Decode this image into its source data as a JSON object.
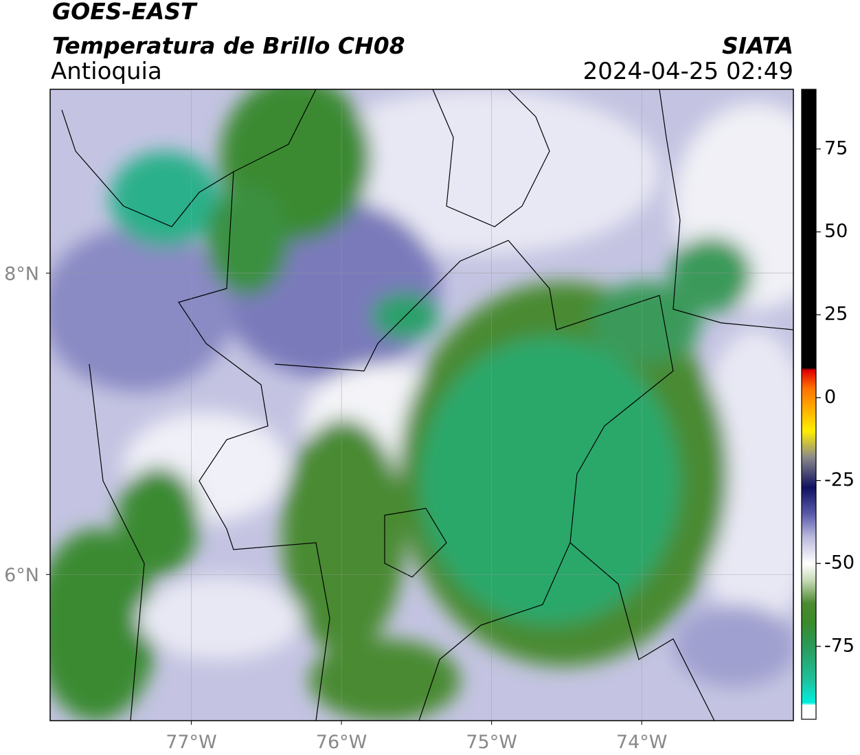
{
  "header": {
    "source": "GOES-EAST",
    "title": "Temperatura de Brillo CH08",
    "region": "Antioquia",
    "agency": "SIATA",
    "datetime": "2024-04-25 02:49"
  },
  "map": {
    "xlim": [
      -77.94,
      -72.99
    ],
    "ylim": [
      5.03,
      9.22
    ],
    "xticks": [
      {
        "value": -77,
        "label": "77°W"
      },
      {
        "value": -76,
        "label": "76°W"
      },
      {
        "value": -75,
        "label": "75°W"
      },
      {
        "value": -74,
        "label": "74°W"
      }
    ],
    "yticks": [
      {
        "value": 6,
        "label": "6°N"
      },
      {
        "value": 8,
        "label": "8°N"
      }
    ],
    "grid": true
  },
  "colorbar": {
    "lim": [
      -97,
      93
    ],
    "ticks": [
      -75,
      -50,
      -25,
      0,
      25,
      50,
      75
    ]
  }
}
